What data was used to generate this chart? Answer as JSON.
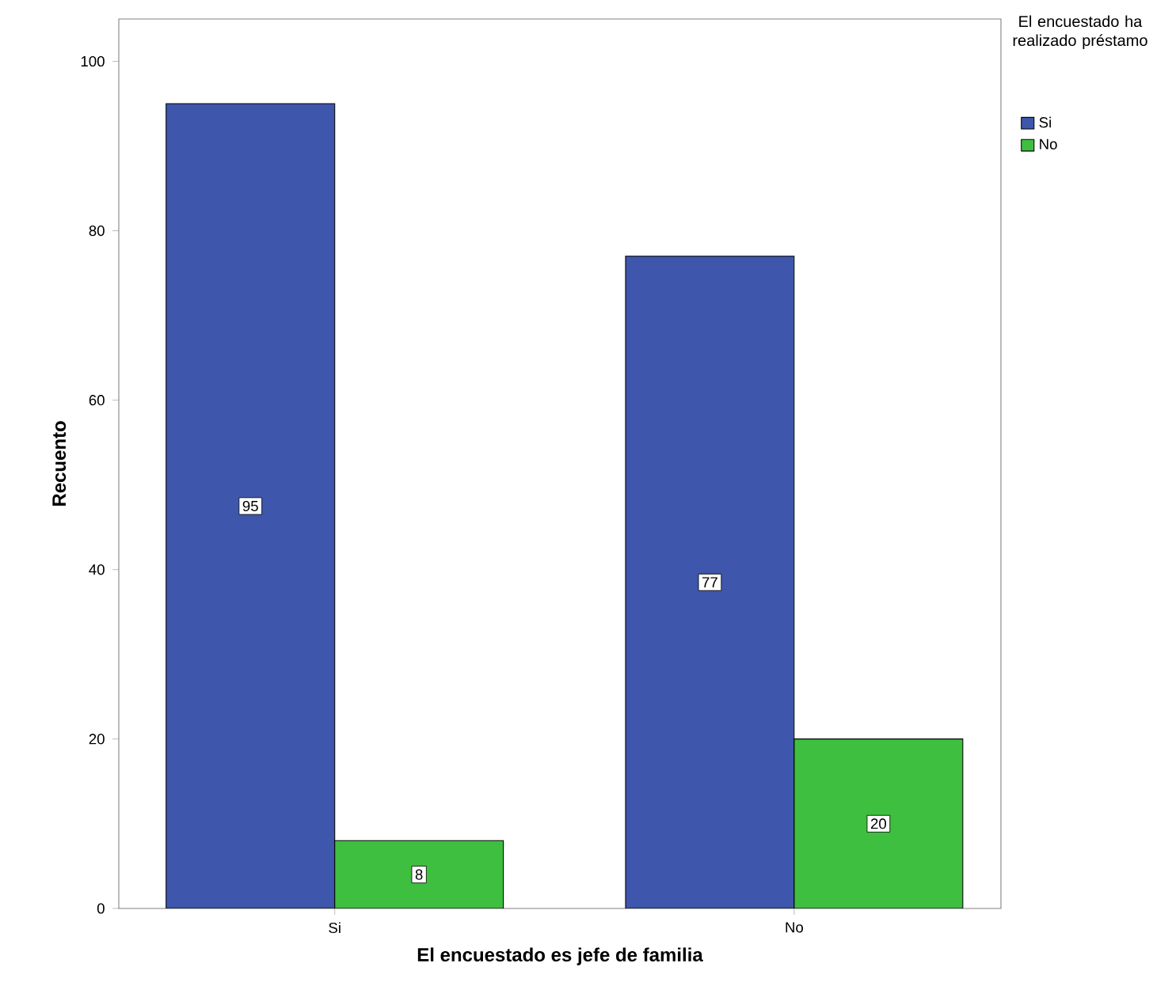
{
  "chart_data": {
    "type": "bar",
    "xlabel": "El encuestado es jefe de familia",
    "ylabel": "Recuento",
    "legend_title": "El encuestado ha realizado préstamo",
    "categories": [
      "Si",
      "No"
    ],
    "series": [
      {
        "name": "Si",
        "color": "#3e56ab",
        "values": [
          95,
          77
        ]
      },
      {
        "name": "No",
        "color": "#3fbf3f",
        "values": [
          8,
          20
        ]
      }
    ],
    "ylim": [
      0,
      105
    ],
    "yticks": [
      0,
      20,
      40,
      60,
      80,
      100
    ],
    "grid": false,
    "legend": "top right",
    "data_labels": true
  }
}
